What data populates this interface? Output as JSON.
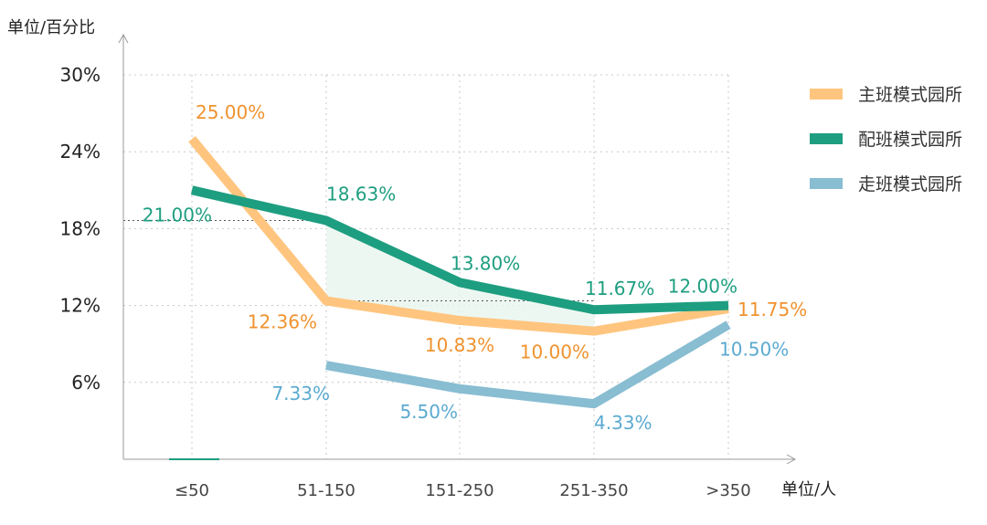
{
  "chart_data": {
    "type": "line",
    "y_unit_label": "单位/百分比",
    "x_unit_label": "单位/人",
    "categories": [
      "≤50",
      "51-150",
      "151-250",
      "251-350",
      ">350"
    ],
    "y_ticks": [
      "6%",
      "12%",
      "18%",
      "24%",
      "30%"
    ],
    "y_tick_values": [
      6,
      12,
      18,
      24,
      30
    ],
    "ylim": [
      0,
      30
    ],
    "grid": true,
    "legend_position": "right",
    "series": [
      {
        "name": "主班模式园所",
        "color": "#FFC57F",
        "values": [
          25.0,
          12.36,
          10.83,
          10.0,
          11.75
        ],
        "labels": [
          "25.00%",
          "12.36%",
          "10.83%",
          "10.00%",
          "11.75%"
        ],
        "label_color": "#F0922E"
      },
      {
        "name": "配班模式园所",
        "color": "#1E9E80",
        "values": [
          21.0,
          18.63,
          13.8,
          11.67,
          12.0
        ],
        "labels": [
          "21.00%",
          "18.63%",
          "13.80%",
          "11.67%",
          "12.00%"
        ],
        "label_color": "#1E9E80"
      },
      {
        "name": "走班模式园所",
        "color": "#88BDD2",
        "values": [
          null,
          7.33,
          5.5,
          4.33,
          10.5
        ],
        "labels": [
          "",
          "7.33%",
          "5.50%",
          "4.33%",
          "10.50%"
        ],
        "label_color": "#5BAAD0"
      }
    ]
  }
}
